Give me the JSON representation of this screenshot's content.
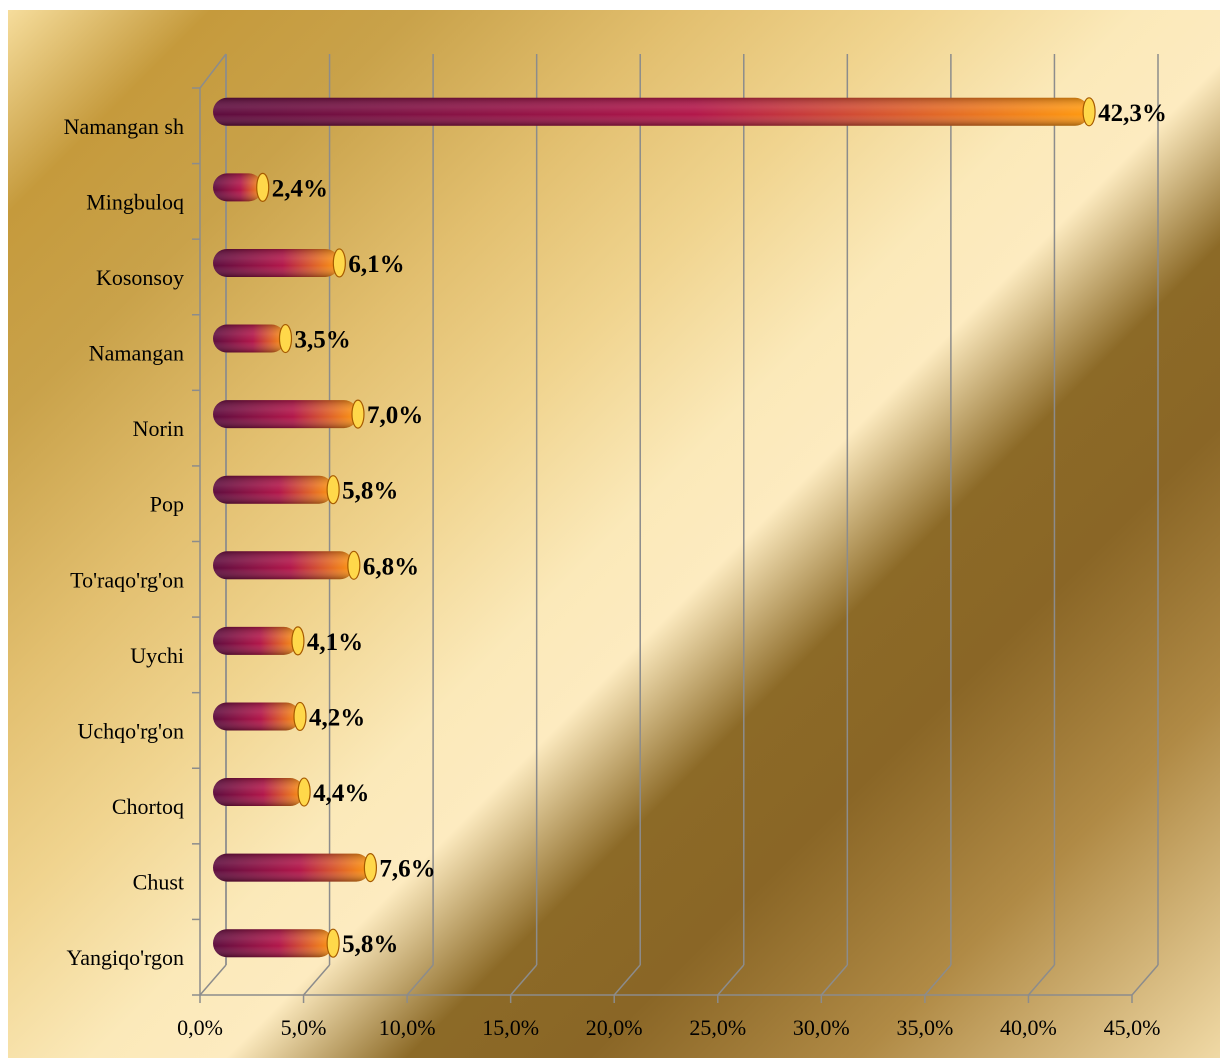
{
  "chart_data": {
    "type": "bar",
    "orientation": "horizontal",
    "title": "",
    "xlabel": "",
    "ylabel": "",
    "categories": [
      "Namangan sh",
      "Mingbuloq",
      "Kosonsoy",
      "Namangan",
      "Norin",
      "Pop",
      "To'raqo'rg'on",
      "Uychi",
      "Uchqo'rg'on",
      "Chortoq",
      "Chust",
      "Yangiqo'rgon"
    ],
    "values": [
      42.3,
      2.4,
      6.1,
      3.5,
      7.0,
      5.8,
      6.8,
      4.1,
      4.2,
      4.4,
      7.6,
      5.8
    ],
    "value_labels": [
      "42,3%",
      "2,4%",
      "6,1%",
      "3,5%",
      "7,0%",
      "5,8%",
      "6,8%",
      "4,1%",
      "4,2%",
      "4,4%",
      "7,6%",
      "5,8%"
    ],
    "xlim": [
      0,
      45
    ],
    "x_ticks": [
      0,
      5,
      10,
      15,
      20,
      25,
      30,
      35,
      40,
      45
    ],
    "x_tick_labels": [
      "0,0%",
      "5,0%",
      "10,0%",
      "15,0%",
      "20,0%",
      "25,0%",
      "30,0%",
      "35,0%",
      "40,0%",
      "45,0%"
    ],
    "grid": true,
    "legend": "none",
    "colors": {
      "bar_dark": "#5e0d3e",
      "bar_mid": "#b2174a",
      "bar_light": "#ff9a10",
      "bar_cap": "#ffd84a",
      "grid": "#8c8c8c"
    }
  }
}
